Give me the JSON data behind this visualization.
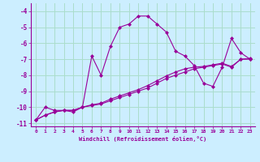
{
  "xlabel": "Windchill (Refroidissement éolien,°C)",
  "ylabel": "",
  "x": [
    0,
    1,
    2,
    3,
    4,
    5,
    6,
    7,
    8,
    9,
    10,
    11,
    12,
    13,
    14,
    15,
    16,
    17,
    18,
    19,
    20,
    21,
    22,
    23
  ],
  "line1": [
    -10.8,
    -10.0,
    -10.2,
    -10.2,
    -10.3,
    -10.0,
    -6.8,
    -8.0,
    -6.2,
    -5.0,
    -4.8,
    -4.3,
    -4.3,
    -4.8,
    -5.3,
    -6.5,
    -6.8,
    -7.4,
    -8.5,
    -8.7,
    -7.5,
    -5.7,
    -6.6,
    -7.0
  ],
  "line2": [
    -10.8,
    -10.5,
    -10.3,
    -10.2,
    -10.2,
    -10.0,
    -9.9,
    -9.8,
    -9.6,
    -9.4,
    -9.2,
    -9.0,
    -8.8,
    -8.5,
    -8.2,
    -8.0,
    -7.8,
    -7.6,
    -7.5,
    -7.4,
    -7.3,
    -7.5,
    -7.0,
    -7.0
  ],
  "line3": [
    -10.8,
    -10.5,
    -10.3,
    -10.2,
    -10.2,
    -10.0,
    -9.85,
    -9.75,
    -9.5,
    -9.3,
    -9.1,
    -8.9,
    -8.65,
    -8.35,
    -8.05,
    -7.8,
    -7.6,
    -7.5,
    -7.45,
    -7.35,
    -7.25,
    -7.45,
    -7.0,
    -6.95
  ],
  "ylim": [
    -11.2,
    -3.5
  ],
  "xlim": [
    -0.5,
    23.5
  ],
  "yticks": [
    -11,
    -10,
    -9,
    -8,
    -7,
    -6,
    -5,
    -4
  ],
  "xticks": [
    0,
    1,
    2,
    3,
    4,
    5,
    6,
    7,
    8,
    9,
    10,
    11,
    12,
    13,
    14,
    15,
    16,
    17,
    18,
    19,
    20,
    21,
    22,
    23
  ],
  "line_color": "#990099",
  "bg_color": "#cceeff",
  "grid_color": "#aaddcc",
  "marker": "D",
  "markersize": 2,
  "linewidth": 0.8
}
